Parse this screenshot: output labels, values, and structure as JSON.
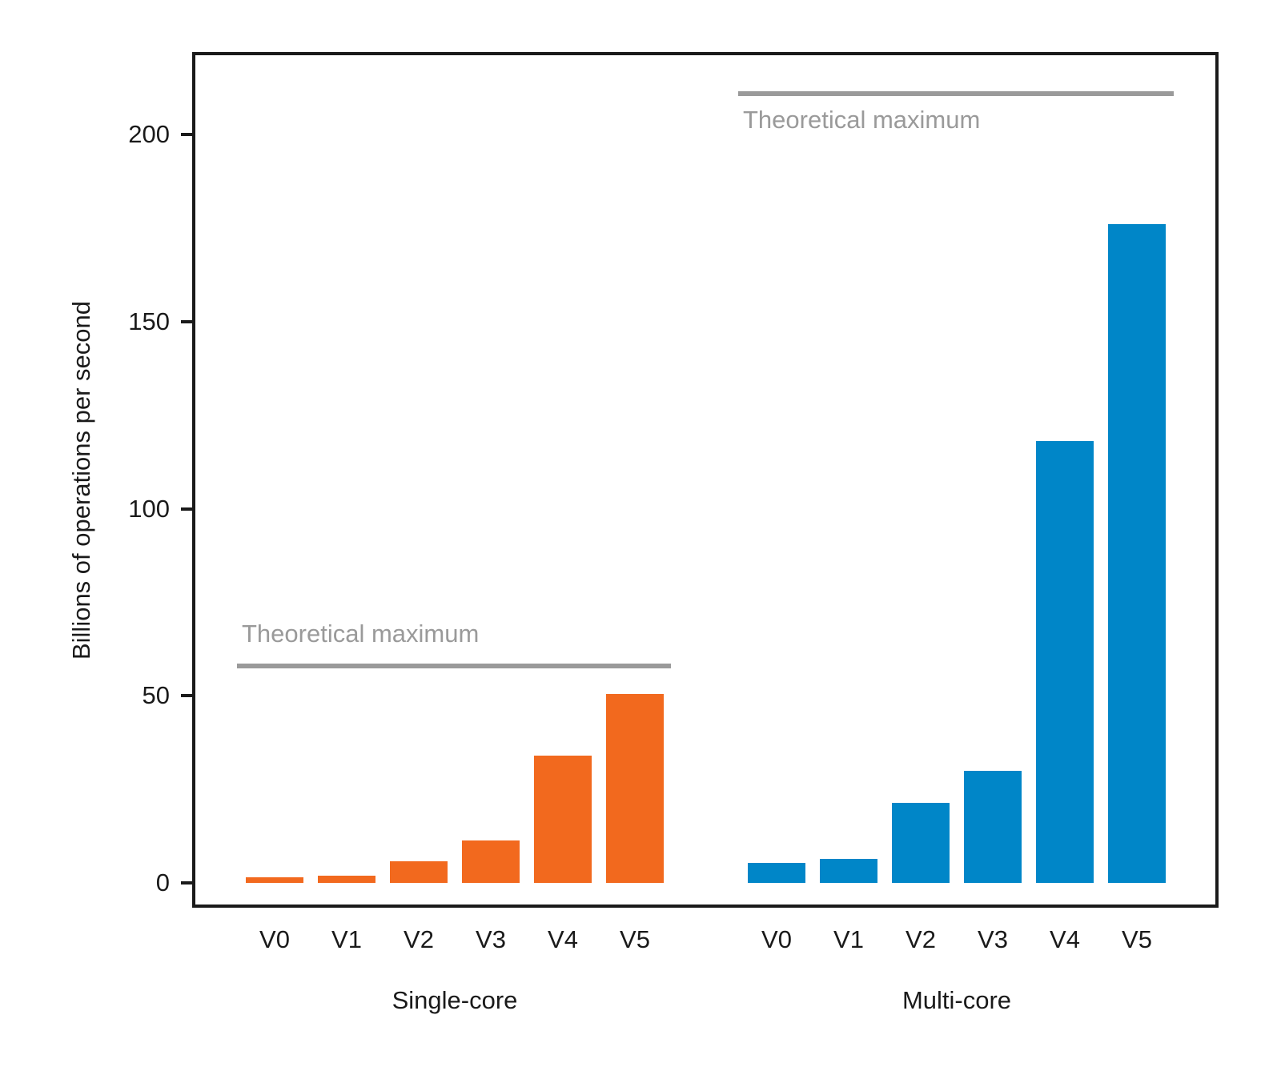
{
  "chart_data": {
    "type": "bar",
    "title": "",
    "ylabel": "Billions of operations per second",
    "xlabel": "",
    "ytick_values": [
      0,
      50,
      100,
      150,
      200
    ],
    "ylim": [
      -6,
      222
    ],
    "grid": false,
    "legend": "none",
    "categories": [
      "V0",
      "V1",
      "V2",
      "V3",
      "V4",
      "V5"
    ],
    "series": [
      {
        "name": "Single-core",
        "color": "#f2691e",
        "values": [
          1.5,
          1.9,
          5.8,
          11.3,
          34,
          50.5
        ],
        "theoretical_max": {
          "label": "Theoretical maximum",
          "value": 58,
          "label_placement": "above-line"
        }
      },
      {
        "name": "Multi-core",
        "color": "#0086c8",
        "values": [
          5.3,
          6.4,
          21.4,
          30,
          118,
          176
        ],
        "theoretical_max": {
          "label": "Theoretical maximum",
          "value": 211,
          "label_placement": "below-line"
        }
      }
    ],
    "annotation_color": "#9a9a9a",
    "axis_color": "#1a1a1a"
  }
}
